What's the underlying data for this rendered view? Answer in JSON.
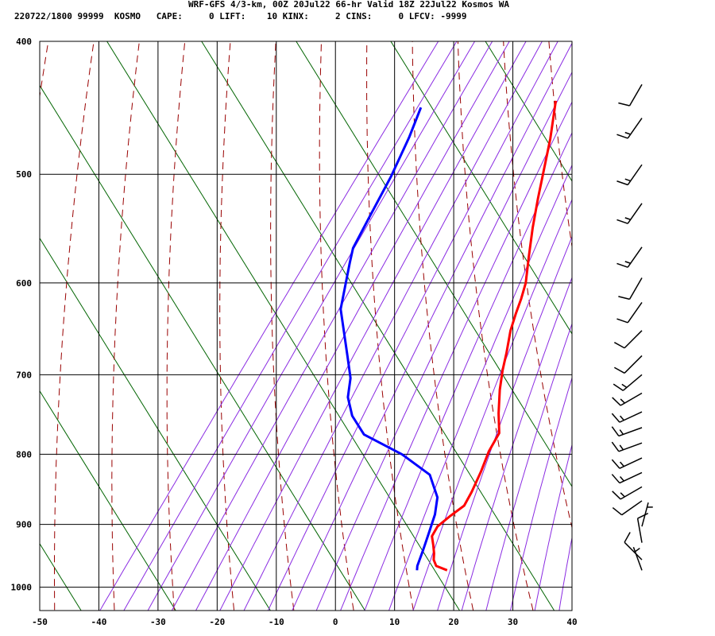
{
  "header": {
    "title": "WRF-GFS 4/3-km, 00Z 20Jul22 66-hr Valid 18Z 22Jul22 Kosmos WA",
    "stats": "220722/1800 99999  KOSMO   CAPE:     0 LIFT:    10 KINX:     2 CINS:     0 LFCV: -9999"
  },
  "colors": {
    "temperature": "#ff0000",
    "dewpoint": "#0000ff",
    "dry_adiabat": "#990000",
    "moist_adiabat": "#8a2be2",
    "mixing_ratio": "#006400",
    "grid": "#000000"
  },
  "chart_data": {
    "type": "line",
    "subtype": "skew-T log-P sounding",
    "xlabel": "",
    "ylabel": "",
    "x_ticks": [
      -50,
      -40,
      -30,
      -20,
      -10,
      0,
      10,
      20,
      30,
      40
    ],
    "y_ticks": [
      400,
      500,
      600,
      700,
      800,
      900,
      1000
    ],
    "xlim": [
      -50,
      40
    ],
    "ylim": [
      1040,
      400
    ],
    "y_scale": "log",
    "grid": true,
    "series": [
      {
        "key": "temperature",
        "points": [
          [
            14.6,
            972
          ],
          [
            12.3,
            965
          ],
          [
            11.2,
            955
          ],
          [
            10.6,
            945
          ],
          [
            9.6,
            932
          ],
          [
            8.4,
            918
          ],
          [
            8.3,
            903
          ],
          [
            9.3,
            888
          ],
          [
            10.6,
            872
          ],
          [
            10.4,
            852
          ],
          [
            9.8,
            823
          ],
          [
            9.0,
            796
          ],
          [
            8.8,
            772
          ],
          [
            6.6,
            747
          ],
          [
            4.3,
            718
          ],
          [
            2.7,
            695
          ],
          [
            1.5,
            675
          ],
          [
            -0.2,
            650
          ],
          [
            -1.1,
            632
          ],
          [
            -1.8,
            616
          ],
          [
            -2.7,
            600
          ],
          [
            -4.9,
            575
          ],
          [
            -7.4,
            547
          ],
          [
            -9.6,
            521
          ],
          [
            -11.7,
            496
          ],
          [
            -13.9,
            471
          ],
          [
            -17.0,
            442
          ]
        ]
      },
      {
        "key": "dewpoint",
        "points": [
          [
            9.5,
            972
          ],
          [
            9.1,
            965
          ],
          [
            8.4,
            940
          ],
          [
            7.5,
            912
          ],
          [
            6.6,
            885
          ],
          [
            5.2,
            860
          ],
          [
            1.5,
            828
          ],
          [
            -5.4,
            800
          ],
          [
            -13.9,
            774
          ],
          [
            -17.9,
            750
          ],
          [
            -20.6,
            727
          ],
          [
            -22.2,
            704
          ],
          [
            -25.1,
            678
          ],
          [
            -31.2,
            627
          ],
          [
            -34.6,
            580
          ],
          [
            -35.6,
            566
          ],
          [
            -36.1,
            540
          ],
          [
            -36.8,
            502
          ],
          [
            -37.9,
            470
          ],
          [
            -39.1,
            447
          ]
        ]
      }
    ],
    "wind_barbs": [
      {
        "pressure": 972,
        "direction_deg": 340,
        "speed_kt": 5
      },
      {
        "pressure": 955,
        "direction_deg": 315,
        "speed_kt": 10
      },
      {
        "pressure": 928,
        "direction_deg": 350,
        "speed_kt": 10
      },
      {
        "pressure": 903,
        "direction_deg": 15,
        "speed_kt": 5
      },
      {
        "pressure": 865,
        "direction_deg": 235,
        "speed_kt": 10
      },
      {
        "pressure": 845,
        "direction_deg": 240,
        "speed_kt": 15
      },
      {
        "pressure": 825,
        "direction_deg": 245,
        "speed_kt": 15
      },
      {
        "pressure": 805,
        "direction_deg": 245,
        "speed_kt": 15
      },
      {
        "pressure": 785,
        "direction_deg": 250,
        "speed_kt": 15
      },
      {
        "pressure": 765,
        "direction_deg": 250,
        "speed_kt": 15
      },
      {
        "pressure": 745,
        "direction_deg": 245,
        "speed_kt": 15
      },
      {
        "pressure": 722,
        "direction_deg": 240,
        "speed_kt": 15
      },
      {
        "pressure": 700,
        "direction_deg": 230,
        "speed_kt": 15
      },
      {
        "pressure": 678,
        "direction_deg": 225,
        "speed_kt": 10
      },
      {
        "pressure": 650,
        "direction_deg": 225,
        "speed_kt": 10
      },
      {
        "pressure": 620,
        "direction_deg": 215,
        "speed_kt": 10
      },
      {
        "pressure": 595,
        "direction_deg": 210,
        "speed_kt": 10
      },
      {
        "pressure": 565,
        "direction_deg": 215,
        "speed_kt": 15
      },
      {
        "pressure": 525,
        "direction_deg": 215,
        "speed_kt": 15
      },
      {
        "pressure": 492,
        "direction_deg": 215,
        "speed_kt": 15
      },
      {
        "pressure": 455,
        "direction_deg": 215,
        "speed_kt": 15
      },
      {
        "pressure": 430,
        "direction_deg": 210,
        "speed_kt": 10
      }
    ]
  }
}
